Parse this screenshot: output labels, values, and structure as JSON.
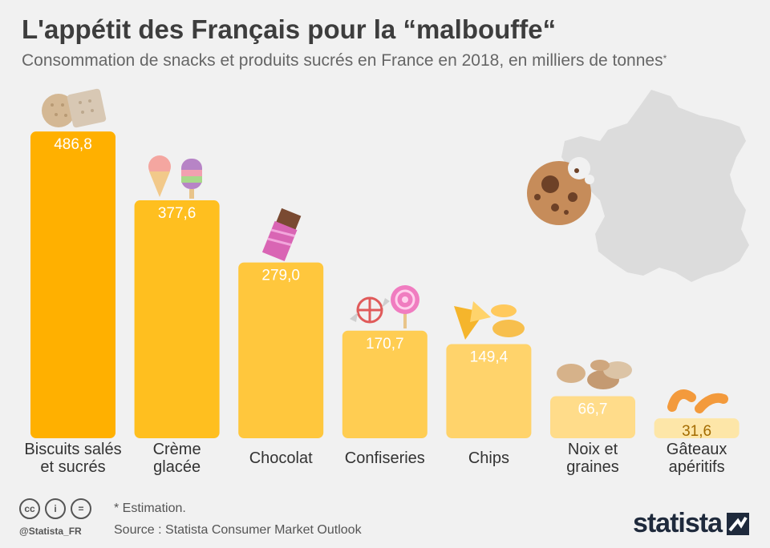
{
  "header": {
    "title": "L'appétit des Français pour la “malbouffe“",
    "subtitle": "Consommation de snacks et produits sucrés en France en 2018, en milliers de tonnes",
    "subtitle_mark": "*"
  },
  "chart_data": {
    "type": "bar",
    "title": "L'appétit des Français pour la “malbouffe“",
    "subtitle": "Consommation de snacks et produits sucrés en France en 2018, en milliers de tonnes*",
    "categories": [
      [
        "Biscuits salés",
        "et sucrés"
      ],
      [
        "Crème",
        "glacée"
      ],
      [
        "Chocolat"
      ],
      [
        "Confiseries"
      ],
      [
        "Chips"
      ],
      [
        "Noix et",
        "graines"
      ],
      [
        "Gâteaux",
        "apéritifs"
      ]
    ],
    "values": [
      486.8,
      377.6,
      279.0,
      170.7,
      149.4,
      66.7,
      31.6
    ],
    "value_labels": [
      "486,8",
      "377,6",
      "279,0",
      "170,7",
      "149,4",
      "66,7",
      "31,6"
    ],
    "colors": [
      "#ffb000",
      "#ffbf1f",
      "#ffc73d",
      "#ffcd52",
      "#ffd36b",
      "#ffdc8a",
      "#fde6a8"
    ],
    "value_label_colors": [
      "#ffffff",
      "#ffffff",
      "#ffffff",
      "#ffffff",
      "#ffffff",
      "#ffffff",
      "#a36b00"
    ],
    "ylim": [
      0,
      500
    ],
    "grid": false,
    "legend": "none"
  },
  "icons": [
    "biscuit-icon",
    "ice-cream-icon",
    "chocolate-bar-icon",
    "candy-icon",
    "chips-icon",
    "nuts-icon",
    "peanut-snack-icon",
    "cookie-icon",
    "france-map-icon"
  ],
  "footer": {
    "note": "* Estimation.",
    "source": "Source : Statista Consumer Market Outlook",
    "handle": "@Statista_FR",
    "brand": "statista",
    "cc_labels": [
      "cc",
      "i",
      "="
    ]
  }
}
